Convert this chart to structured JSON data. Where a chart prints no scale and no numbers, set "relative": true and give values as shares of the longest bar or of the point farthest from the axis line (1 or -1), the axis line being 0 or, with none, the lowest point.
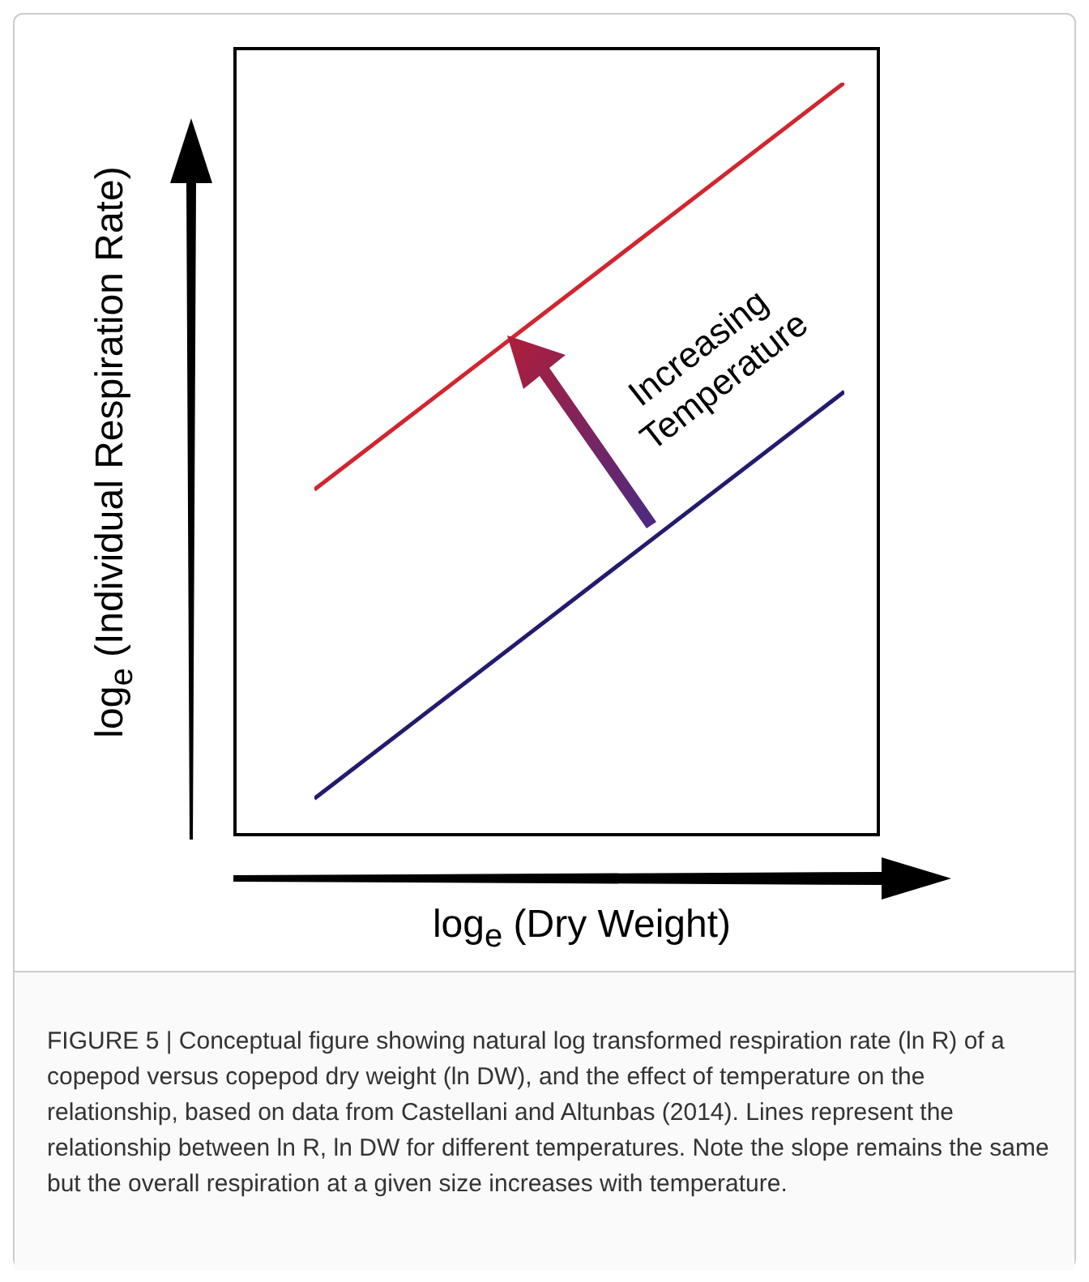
{
  "chart_data": {
    "type": "line",
    "relative": true,
    "xlabel": "log$_{e}$ (Dry Weight)",
    "ylabel": "log$_{e}$ (Individual Respiration Rate)",
    "categories": [
      null,
      null
    ],
    "legend": false,
    "marker": "none",
    "series": [
      {
        "color": "#d0262f",
        "values": [
          0.46,
          1
        ]
      },
      {
        "color": "#221c6e",
        "values": [
          0.05,
          0.59
        ]
      }
    ],
    "annotations": [
      "Increasing Temperature",
      "FIGURE 5 | Conceptual figure showing natural log transformed respiration rate (ln R) of a copepod versus copepod dry weight (ln DW), and the effect of temperature on the relationship, based on data from Castellani and Altunbas (2014). Lines represent the relationship between ln R, ln DW for different temperatures. Note the slope remains the same but the overall respiration at a given size increases with temperature."
    ]
  }
}
